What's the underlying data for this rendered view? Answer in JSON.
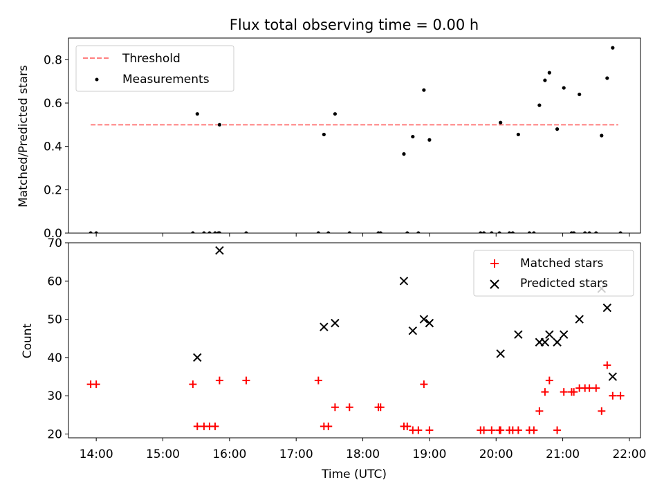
{
  "title": "Flux total observing time = 0.00 h",
  "chart_data": [
    {
      "type": "scatter",
      "panel": "top",
      "ylabel": "Matched/Predicted stars",
      "xlim": [
        "13:35",
        "22:10"
      ],
      "ylim": [
        0,
        0.9
      ],
      "yticks": [
        0.0,
        0.2,
        0.4,
        0.6,
        0.8
      ],
      "yticklabels": [
        "0.0",
        "0.2",
        "0.4",
        "0.6",
        "0.8"
      ],
      "legend": {
        "position": "upper-left",
        "entries": [
          "Threshold",
          "Measurements"
        ]
      },
      "series": [
        {
          "name": "Threshold",
          "style": "dashed-line",
          "color": "#ff7f7f",
          "x": [
            "13:55",
            "21:50"
          ],
          "y": [
            0.5,
            0.5
          ]
        },
        {
          "name": "Measurements",
          "style": "dot",
          "color": "#000000",
          "points": [
            [
              "13:55",
              0.0
            ],
            [
              "14:00",
              0.0
            ],
            [
              "15:27",
              0.0
            ],
            [
              "15:31",
              0.55
            ],
            [
              "15:37",
              0.0
            ],
            [
              "15:42",
              0.0
            ],
            [
              "15:47",
              0.0
            ],
            [
              "15:51",
              0.0
            ],
            [
              "15:50",
              0.0
            ],
            [
              "15:51",
              0.5
            ],
            [
              "16:15",
              0.0
            ],
            [
              "17:20",
              0.0
            ],
            [
              "17:25",
              0.455
            ],
            [
              "17:29",
              0.0
            ],
            [
              "17:35",
              0.55
            ],
            [
              "17:48",
              0.0
            ],
            [
              "18:14",
              0.0
            ],
            [
              "18:16",
              0.0
            ],
            [
              "18:37",
              0.365
            ],
            [
              "18:40",
              0.0
            ],
            [
              "18:45",
              0.445
            ],
            [
              "18:50",
              0.0
            ],
            [
              "18:55",
              0.66
            ],
            [
              "19:00",
              0.43
            ],
            [
              "19:46",
              0.0
            ],
            [
              "19:49",
              0.0
            ],
            [
              "19:56",
              0.0
            ],
            [
              "20:03",
              0.0
            ],
            [
              "20:04",
              0.51
            ],
            [
              "20:12",
              0.0
            ],
            [
              "20:15",
              0.0
            ],
            [
              "20:20",
              0.455
            ],
            [
              "20:30",
              0.0
            ],
            [
              "20:34",
              0.0
            ],
            [
              "20:39",
              0.59
            ],
            [
              "20:44",
              0.705
            ],
            [
              "20:48",
              0.74
            ],
            [
              "20:55",
              0.48
            ],
            [
              "21:01",
              0.67
            ],
            [
              "21:08",
              0.0
            ],
            [
              "21:10",
              0.0
            ],
            [
              "21:15",
              0.64
            ],
            [
              "21:20",
              0.0
            ],
            [
              "21:24",
              0.0
            ],
            [
              "21:30",
              0.0
            ],
            [
              "21:35",
              0.45
            ],
            [
              "21:40",
              0.715
            ],
            [
              "21:45",
              0.855
            ],
            [
              "21:52",
              0.0
            ]
          ]
        }
      ]
    },
    {
      "type": "scatter",
      "panel": "bottom",
      "xlabel": "Time (UTC)",
      "ylabel": "Count",
      "xlim": [
        "13:35",
        "22:10"
      ],
      "ylim": [
        19,
        70
      ],
      "xticks": [
        "14:00",
        "15:00",
        "16:00",
        "17:00",
        "18:00",
        "19:00",
        "20:00",
        "21:00",
        "22:00"
      ],
      "yticks": [
        20,
        30,
        40,
        50,
        60,
        70
      ],
      "yticklabels": [
        "20",
        "30",
        "40",
        "50",
        "60",
        "70"
      ],
      "legend": {
        "position": "upper-right",
        "entries": [
          "Matched stars",
          "Predicted stars"
        ]
      },
      "series": [
        {
          "name": "Matched stars",
          "marker": "plus",
          "color": "#ff0000",
          "points": [
            [
              "13:55",
              33
            ],
            [
              "14:00",
              33
            ],
            [
              "15:27",
              33
            ],
            [
              "15:31",
              22
            ],
            [
              "15:37",
              22
            ],
            [
              "15:42",
              22
            ],
            [
              "15:47",
              22
            ],
            [
              "15:51",
              34
            ],
            [
              "16:15",
              34
            ],
            [
              "17:20",
              34
            ],
            [
              "17:25",
              22
            ],
            [
              "17:29",
              22
            ],
            [
              "17:35",
              27
            ],
            [
              "17:48",
              27
            ],
            [
              "18:14",
              27
            ],
            [
              "18:16",
              27
            ],
            [
              "18:37",
              22
            ],
            [
              "18:40",
              22
            ],
            [
              "18:45",
              21
            ],
            [
              "18:50",
              21
            ],
            [
              "18:55",
              33
            ],
            [
              "19:00",
              21
            ],
            [
              "19:46",
              21
            ],
            [
              "19:49",
              21
            ],
            [
              "19:56",
              21
            ],
            [
              "20:03",
              21
            ],
            [
              "20:04",
              21
            ],
            [
              "20:12",
              21
            ],
            [
              "20:15",
              21
            ],
            [
              "20:20",
              21
            ],
            [
              "20:30",
              21
            ],
            [
              "20:34",
              21
            ],
            [
              "20:39",
              26
            ],
            [
              "20:44",
              31
            ],
            [
              "20:48",
              34
            ],
            [
              "20:55",
              21
            ],
            [
              "21:01",
              31
            ],
            [
              "21:08",
              31
            ],
            [
              "21:10",
              31
            ],
            [
              "21:15",
              32
            ],
            [
              "21:20",
              32
            ],
            [
              "21:24",
              32
            ],
            [
              "21:30",
              32
            ],
            [
              "21:35",
              26
            ],
            [
              "21:40",
              38
            ],
            [
              "21:45",
              30
            ],
            [
              "21:52",
              30
            ]
          ]
        },
        {
          "name": "Predicted stars",
          "marker": "x",
          "color": "#000000",
          "points": [
            [
              "15:31",
              40
            ],
            [
              "15:51",
              68
            ],
            [
              "17:25",
              48
            ],
            [
              "17:35",
              49
            ],
            [
              "18:37",
              60
            ],
            [
              "18:45",
              47
            ],
            [
              "18:55",
              50
            ],
            [
              "19:00",
              49
            ],
            [
              "20:04",
              41
            ],
            [
              "20:20",
              46
            ],
            [
              "20:39",
              44
            ],
            [
              "20:44",
              44
            ],
            [
              "20:48",
              46
            ],
            [
              "20:55",
              44
            ],
            [
              "21:01",
              46
            ],
            [
              "21:15",
              50
            ],
            [
              "21:35",
              58
            ],
            [
              "21:40",
              53
            ],
            [
              "21:45",
              35
            ]
          ]
        }
      ]
    }
  ]
}
